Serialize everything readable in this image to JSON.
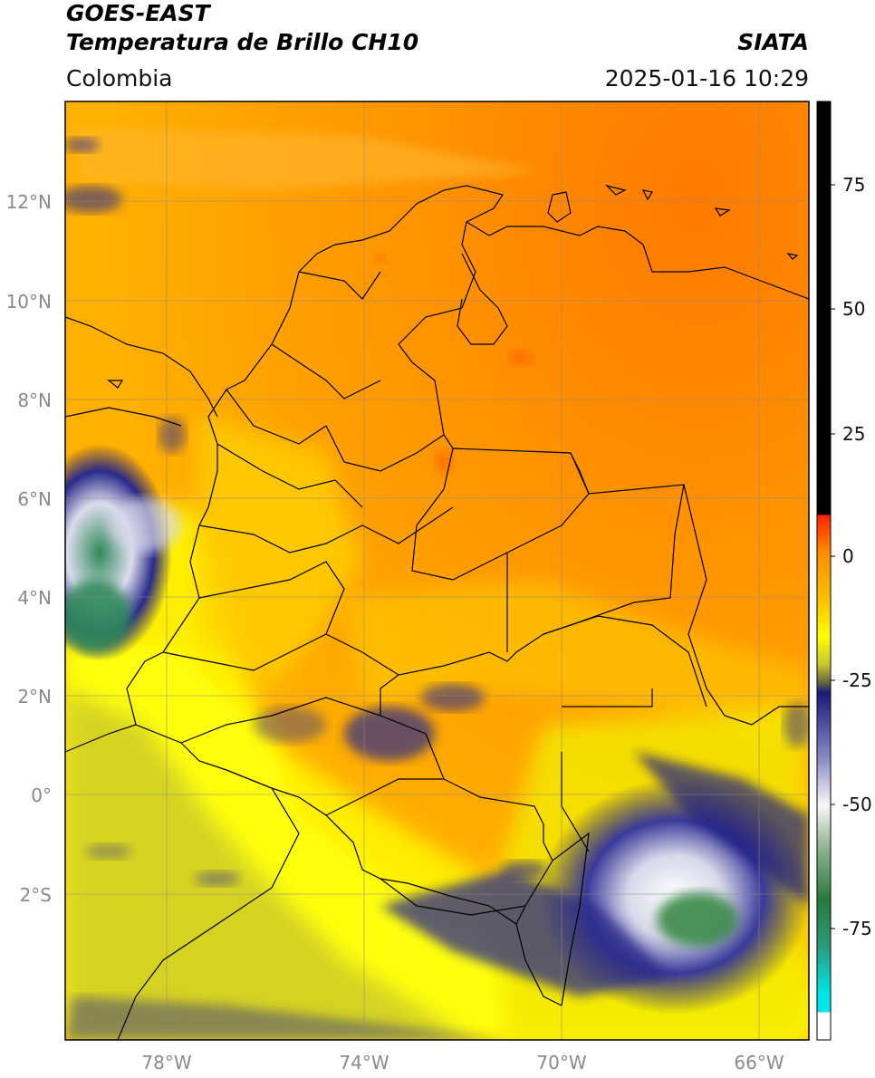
{
  "header": {
    "line1": "GOES-EAST",
    "line2": "Temperatura de Brillo CH10",
    "org": "SIATA",
    "region": "Colombia",
    "datetime": "2025-01-16 10:29"
  },
  "map": {
    "lat_ticks": [
      "12°N",
      "10°N",
      "8°N",
      "6°N",
      "4°N",
      "2°N",
      "0°",
      "2°S"
    ],
    "lon_ticks": [
      "78°W",
      "74°W",
      "70°W",
      "66°W"
    ],
    "colors": {
      "warm_orange": "#ff8c00",
      "orange": "#ffa500",
      "yellow": "#ffff00",
      "olive": "#b5b52a",
      "navy": "#1a1a7a",
      "white": "#f2f2f2",
      "green": "#3a8a3a",
      "teal": "#2ab5a0",
      "border": "#000000",
      "grid": "#888888"
    }
  },
  "colorbar": {
    "ticks": [
      "75",
      "50",
      "25",
      "0",
      "-25",
      "-50",
      "-75"
    ],
    "units_note": "brightness temperature scale"
  }
}
